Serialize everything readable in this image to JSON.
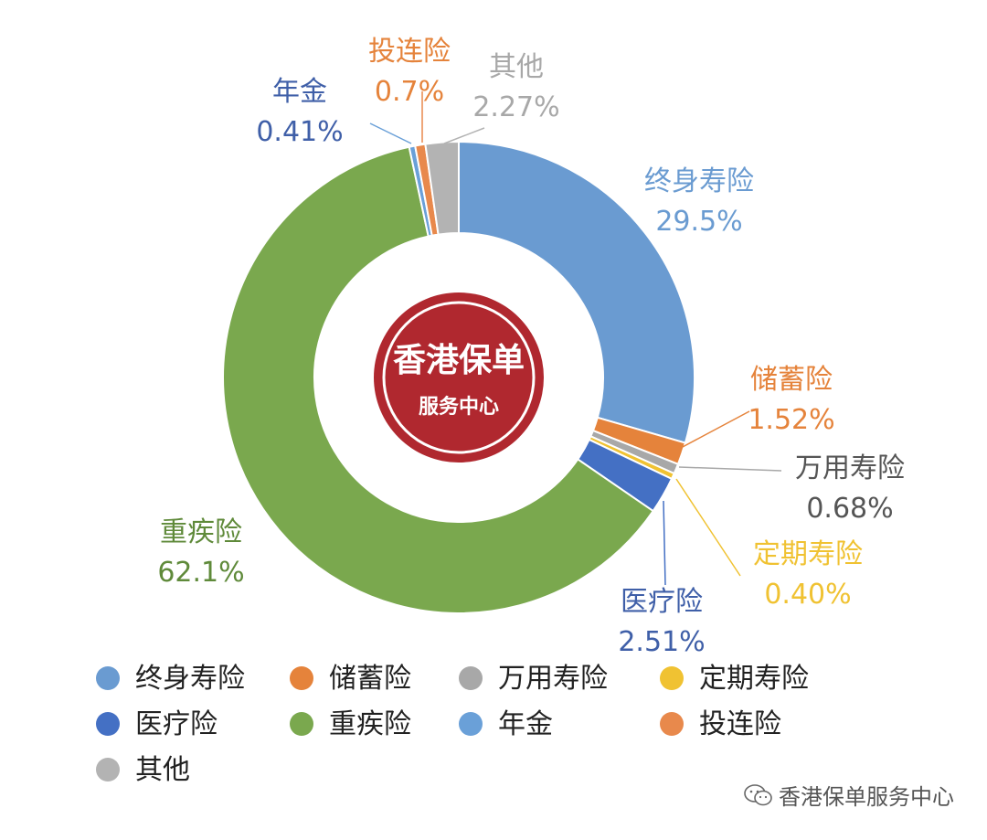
{
  "chart_data": {
    "type": "pie",
    "variant": "donut",
    "categories": [
      "终身寿险",
      "储蓄险",
      "万用寿险",
      "定期寿险",
      "医疗险",
      "重疾险",
      "年金",
      "投连险",
      "其他"
    ],
    "values": [
      29.5,
      1.52,
      0.68,
      0.4,
      2.51,
      62.1,
      0.41,
      0.7,
      2.27
    ],
    "value_labels": [
      "29.5%",
      "1.52%",
      "0.68%",
      "0.40%",
      "2.51%",
      "62.1%",
      "0.41%",
      "0.7%",
      "2.27%"
    ],
    "colors": [
      "#6a9bd1",
      "#e5833b",
      "#a8a8a8",
      "#f0c232",
      "#4470c4",
      "#7aa84e",
      "#6aa0d8",
      "#e8894c",
      "#b3b3b3"
    ],
    "label_colors": [
      "#6a9bd1",
      "#e5833b",
      "#555555",
      "#f0c232",
      "#3f5fa8",
      "#5f8a3a",
      "#3f5fa8",
      "#e5833b",
      "#a8a8a8"
    ],
    "legend": {
      "position": "bottom",
      "entries": [
        "终身寿险",
        "储蓄险",
        "万用寿险",
        "定期寿险",
        "医疗险",
        "重疾险",
        "年金",
        "投连险",
        "其他"
      ]
    },
    "center_badge": {
      "line1": "香港保单",
      "line2": "服务中心",
      "color": "#b0282f"
    }
  },
  "watermark": {
    "text": "香港保单服务中心",
    "icon": "wechat-icon"
  }
}
